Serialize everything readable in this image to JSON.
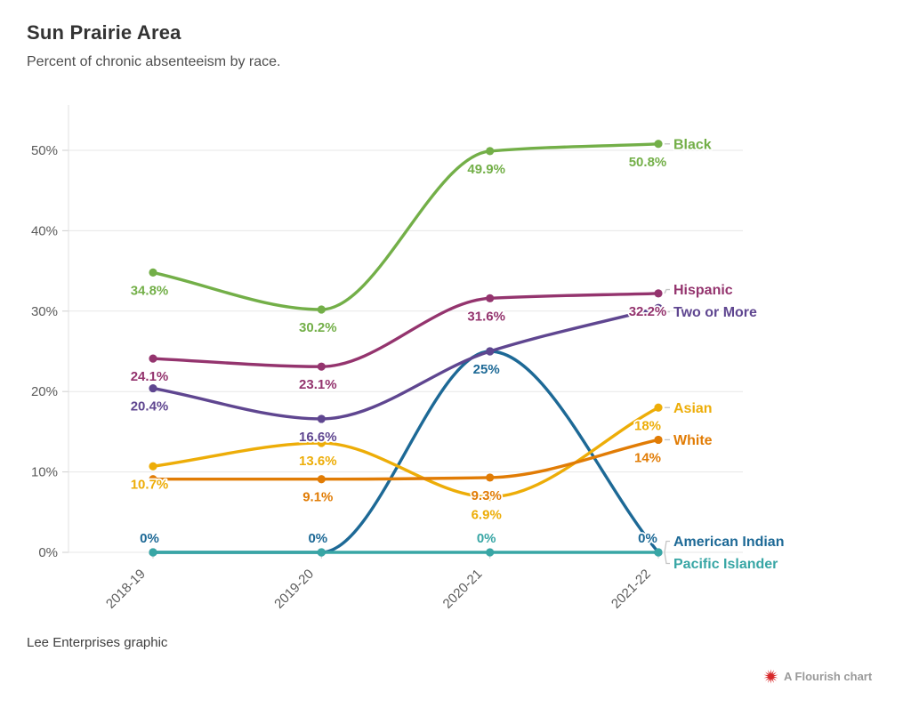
{
  "header": {
    "title": "Sun Prairie Area",
    "subtitle": "Percent of chronic absenteeism by race."
  },
  "footer": {
    "credit": "Lee Enterprises graphic",
    "attribution": "A Flourish chart",
    "attribution_icon_color": "#d7282a"
  },
  "chart_data": {
    "type": "line",
    "title": "Sun Prairie Area",
    "subtitle": "Percent of chronic absenteeism by race.",
    "x_labels": [
      "2018-19",
      "2019-20",
      "2020-21",
      "2021-22"
    ],
    "y_ticks": [
      {
        "label": "0%",
        "value": 0
      },
      {
        "label": "10%",
        "value": 10
      },
      {
        "label": "20%",
        "value": 20
      },
      {
        "label": "30%",
        "value": 30
      },
      {
        "label": "40%",
        "value": 40
      },
      {
        "label": "50%",
        "value": 50
      }
    ],
    "ylim": [
      0,
      55.5
    ],
    "grid": true,
    "legend_position": "inline-right-labels",
    "series": [
      {
        "name": "American Indian",
        "color": "#1D6996",
        "values": [
          0,
          0,
          25,
          0
        ],
        "labels": [
          "0%",
          "0%",
          "25%",
          "0%"
        ]
      },
      {
        "name": "Asian",
        "color": "#EDAD08",
        "values": [
          10.7,
          13.6,
          6.9,
          18
        ],
        "labels": [
          "10.7%",
          "13.6%",
          "6.9%",
          "18%"
        ]
      },
      {
        "name": "Black",
        "color": "#73AF48",
        "values": [
          34.8,
          30.2,
          49.9,
          50.8
        ],
        "labels": [
          "34.8%",
          "30.2%",
          "49.9%",
          "50.8%"
        ]
      },
      {
        "name": "Hispanic",
        "color": "#94346E",
        "values": [
          24.1,
          23.1,
          31.6,
          32.2
        ],
        "labels": [
          "24.1%",
          "23.1%",
          "31.6%",
          "32.2%"
        ]
      },
      {
        "name": "Pacific Islander",
        "color": "#38A6A5",
        "values": [
          0,
          0,
          0,
          0
        ],
        "labels": [
          null,
          null,
          "0%",
          null
        ]
      },
      {
        "name": "Two or More",
        "color": "#5F4690",
        "values": [
          20.4,
          16.6,
          25,
          30.4
        ],
        "labels": [
          "20.4%",
          "16.6%",
          null,
          null
        ]
      },
      {
        "name": "White",
        "color": "#E17C05",
        "values": [
          9.1,
          9.1,
          9.3,
          14
        ],
        "labels": [
          null,
          "9.1%",
          "9.3%",
          "14%"
        ]
      }
    ]
  }
}
